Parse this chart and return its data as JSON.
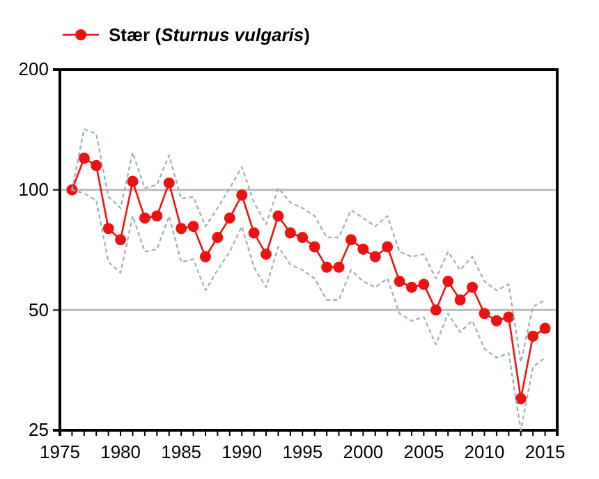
{
  "chart_data": {
    "type": "line",
    "x": [
      1976,
      1977,
      1978,
      1979,
      1980,
      1981,
      1982,
      1983,
      1984,
      1985,
      1986,
      1987,
      1988,
      1989,
      1990,
      1991,
      1992,
      1993,
      1994,
      1995,
      1996,
      1997,
      1998,
      1999,
      2000,
      2001,
      2002,
      2003,
      2004,
      2005,
      2006,
      2007,
      2008,
      2009,
      2010,
      2011,
      2012,
      2013,
      2014,
      2015
    ],
    "series": [
      {
        "name": "Stær (Sturnus vulgaris)",
        "color": "#ee1111",
        "values": [
          100,
          120,
          115,
          80,
          75,
          105,
          85,
          86,
          104,
          80,
          81,
          68,
          76,
          85,
          97,
          78,
          69,
          86,
          78,
          76,
          72,
          64,
          64,
          75,
          71,
          68,
          72,
          59,
          57,
          58,
          50,
          59,
          53,
          57,
          49,
          47,
          48,
          30,
          43,
          45
        ],
        "marker": "circle",
        "line_style": "solid"
      },
      {
        "color": "#9fb3bb",
        "marker": "none",
        "line_style": "dotted",
        "values": [
          100,
          98,
          94,
          66,
          62,
          86,
          70,
          71,
          86,
          66,
          67,
          56,
          63,
          70,
          81,
          64,
          57,
          72,
          65,
          63,
          60,
          53,
          53,
          63,
          59,
          57,
          60,
          49,
          47,
          48,
          41,
          49,
          44,
          47,
          40,
          38,
          39,
          25,
          36,
          38
        ]
      },
      {
        "color": "#9fb3bb",
        "marker": "none",
        "line_style": "dotted",
        "values": [
          100,
          142,
          138,
          96,
          90,
          124,
          101,
          103,
          122,
          95,
          96,
          81,
          90,
          101,
          114,
          93,
          82,
          101,
          93,
          90,
          86,
          76,
          76,
          89,
          85,
          81,
          86,
          70,
          68,
          69,
          60,
          70,
          63,
          68,
          59,
          56,
          58,
          37,
          51,
          53
        ]
      }
    ],
    "ylim": [
      25,
      200
    ],
    "yticks": [
      25,
      50,
      100,
      200
    ],
    "log": true,
    "xlim": [
      1975,
      2016
    ],
    "xticks": [
      1975,
      {
        "value": 1976,
        "label": null
      },
      {
        "value": 1977,
        "label": null
      },
      {
        "value": 1978,
        "label": null
      },
      {
        "value": 1979,
        "label": null
      },
      1980,
      {
        "value": 1981,
        "label": null
      },
      {
        "value": 1982,
        "label": null
      },
      {
        "value": 1983,
        "label": null
      },
      {
        "value": 1984,
        "label": null
      },
      1985,
      {
        "value": 1986,
        "label": null
      },
      {
        "value": 1987,
        "label": null
      },
      {
        "value": 1988,
        "label": null
      },
      {
        "value": 1989,
        "label": null
      },
      1990,
      {
        "value": 1991,
        "label": null
      },
      {
        "value": 1992,
        "label": null
      },
      {
        "value": 1993,
        "label": null
      },
      {
        "value": 1994,
        "label": null
      },
      1995,
      {
        "value": 1996,
        "label": null
      },
      {
        "value": 1997,
        "label": null
      },
      {
        "value": 1998,
        "label": null
      },
      {
        "value": 1999,
        "label": null
      },
      2000,
      {
        "value": 2001,
        "label": null
      },
      {
        "value": 2002,
        "label": null
      },
      {
        "value": 2003,
        "label": null
      },
      {
        "value": 2004,
        "label": null
      },
      2005,
      {
        "value": 2006,
        "label": null
      },
      {
        "value": 2007,
        "label": null
      },
      {
        "value": 2008,
        "label": null
      },
      {
        "value": 2009,
        "label": null
      },
      2010,
      {
        "value": 2011,
        "label": null
      },
      {
        "value": 2012,
        "label": null
      },
      {
        "value": 2013,
        "label": null
      },
      {
        "value": 2014,
        "label": null
      },
      2015
    ],
    "grid": "y",
    "legend": "top left"
  }
}
